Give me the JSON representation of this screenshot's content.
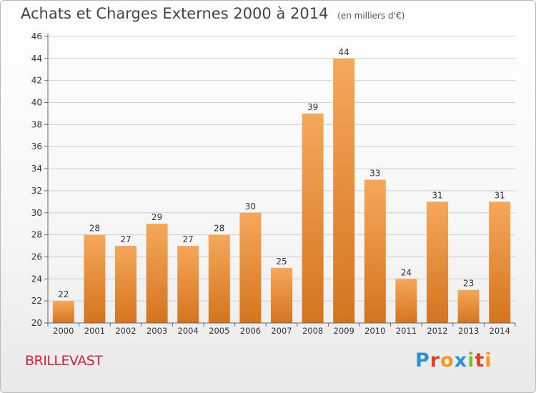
{
  "header": {
    "title": "Achats et Charges Externes 2000 à 2014",
    "unit": "(en milliers d'€)"
  },
  "footer": {
    "commune": "BRILLEVAST",
    "logo_text": "Proxiti"
  },
  "colors": {
    "bar_top": "#f5a85a",
    "bar_bottom": "#d4741f",
    "axis": "#666666",
    "grid": "#cfcfcf",
    "commune": "#d8223b"
  },
  "chart_data": {
    "type": "bar",
    "title": "Achats et Charges Externes 2000 à 2014",
    "subtitle": "(en milliers d'€)",
    "xlabel": "",
    "ylabel": "",
    "categories": [
      "2000",
      "2001",
      "2002",
      "2003",
      "2004",
      "2005",
      "2006",
      "2007",
      "2008",
      "2009",
      "2010",
      "2011",
      "2012",
      "2013",
      "2014"
    ],
    "values": [
      22,
      28,
      27,
      29,
      27,
      28,
      30,
      25,
      39,
      44,
      33,
      24,
      31,
      23,
      31
    ],
    "ylim": [
      20,
      46
    ],
    "yticks": [
      20,
      22,
      24,
      26,
      28,
      30,
      32,
      34,
      36,
      38,
      40,
      42,
      44,
      46
    ],
    "grid": true,
    "legend": "none"
  }
}
